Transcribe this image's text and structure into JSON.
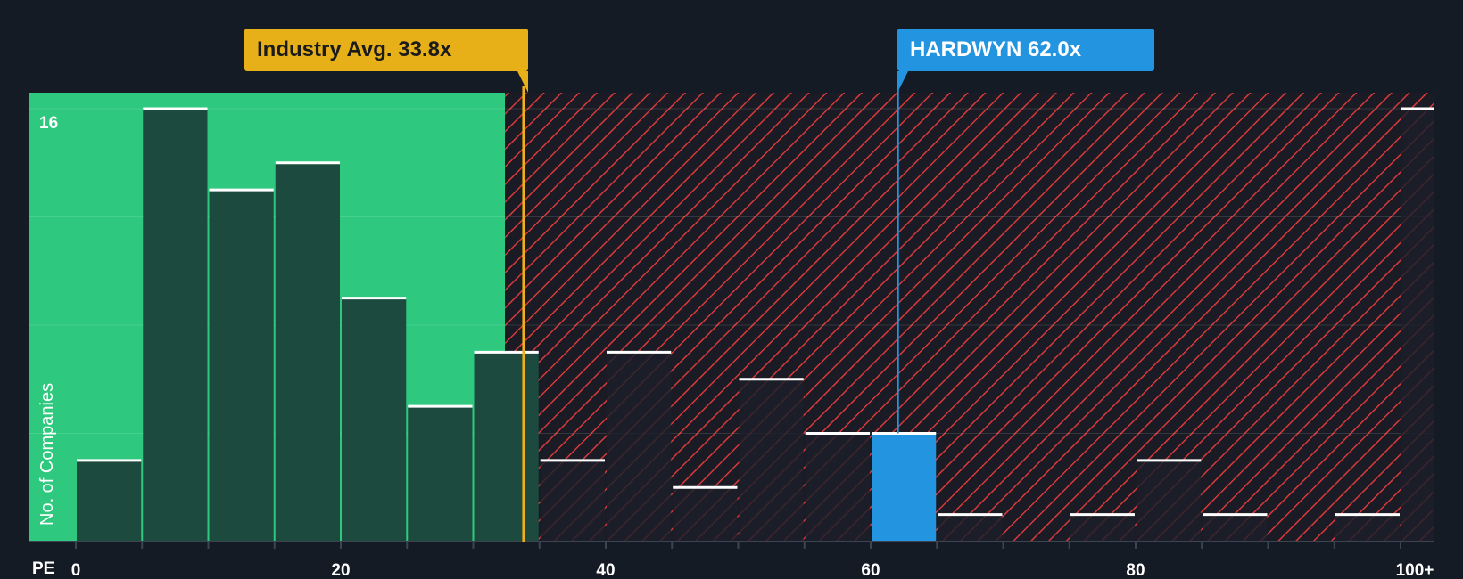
{
  "chart_data": {
    "type": "bar",
    "title": "",
    "xlabel": "PE",
    "ylabel": "No. of Companies",
    "x_ticks": [
      "0",
      "20",
      "40",
      "60",
      "80",
      "100+"
    ],
    "y_ticks": [
      16
    ],
    "ylim": [
      0,
      16
    ],
    "xlim": [
      0,
      100
    ],
    "bin_width": 5,
    "bins": [
      {
        "start": 0,
        "value": 3
      },
      {
        "start": 5,
        "value": 16
      },
      {
        "start": 10,
        "value": 13
      },
      {
        "start": 15,
        "value": 14
      },
      {
        "start": 20,
        "value": 9
      },
      {
        "start": 25,
        "value": 5
      },
      {
        "start": 30,
        "value": 7
      },
      {
        "start": 35,
        "value": 3
      },
      {
        "start": 40,
        "value": 7
      },
      {
        "start": 45,
        "value": 2
      },
      {
        "start": 50,
        "value": 6
      },
      {
        "start": 55,
        "value": 4
      },
      {
        "start": 60,
        "value": 4,
        "highlight": true
      },
      {
        "start": 65,
        "value": 1
      },
      {
        "start": 75,
        "value": 1
      },
      {
        "start": 80,
        "value": 3
      },
      {
        "start": 85,
        "value": 1
      },
      {
        "start": 95,
        "value": 1
      },
      {
        "start": 100,
        "value": 16
      }
    ],
    "industry_avg": {
      "label": "Industry Avg. 33.8x",
      "value": 33.8
    },
    "company": {
      "label": "HARDWYN 62.0x",
      "value": 62.0
    },
    "colors": {
      "background": "#151b24",
      "green_zone": "#2ec97e",
      "bar_green": "#1c4a3e",
      "bar_red": "#1c2029",
      "hatch": "#e23b3b",
      "highlight": "#2394e0",
      "industry": "#e8b018"
    }
  }
}
